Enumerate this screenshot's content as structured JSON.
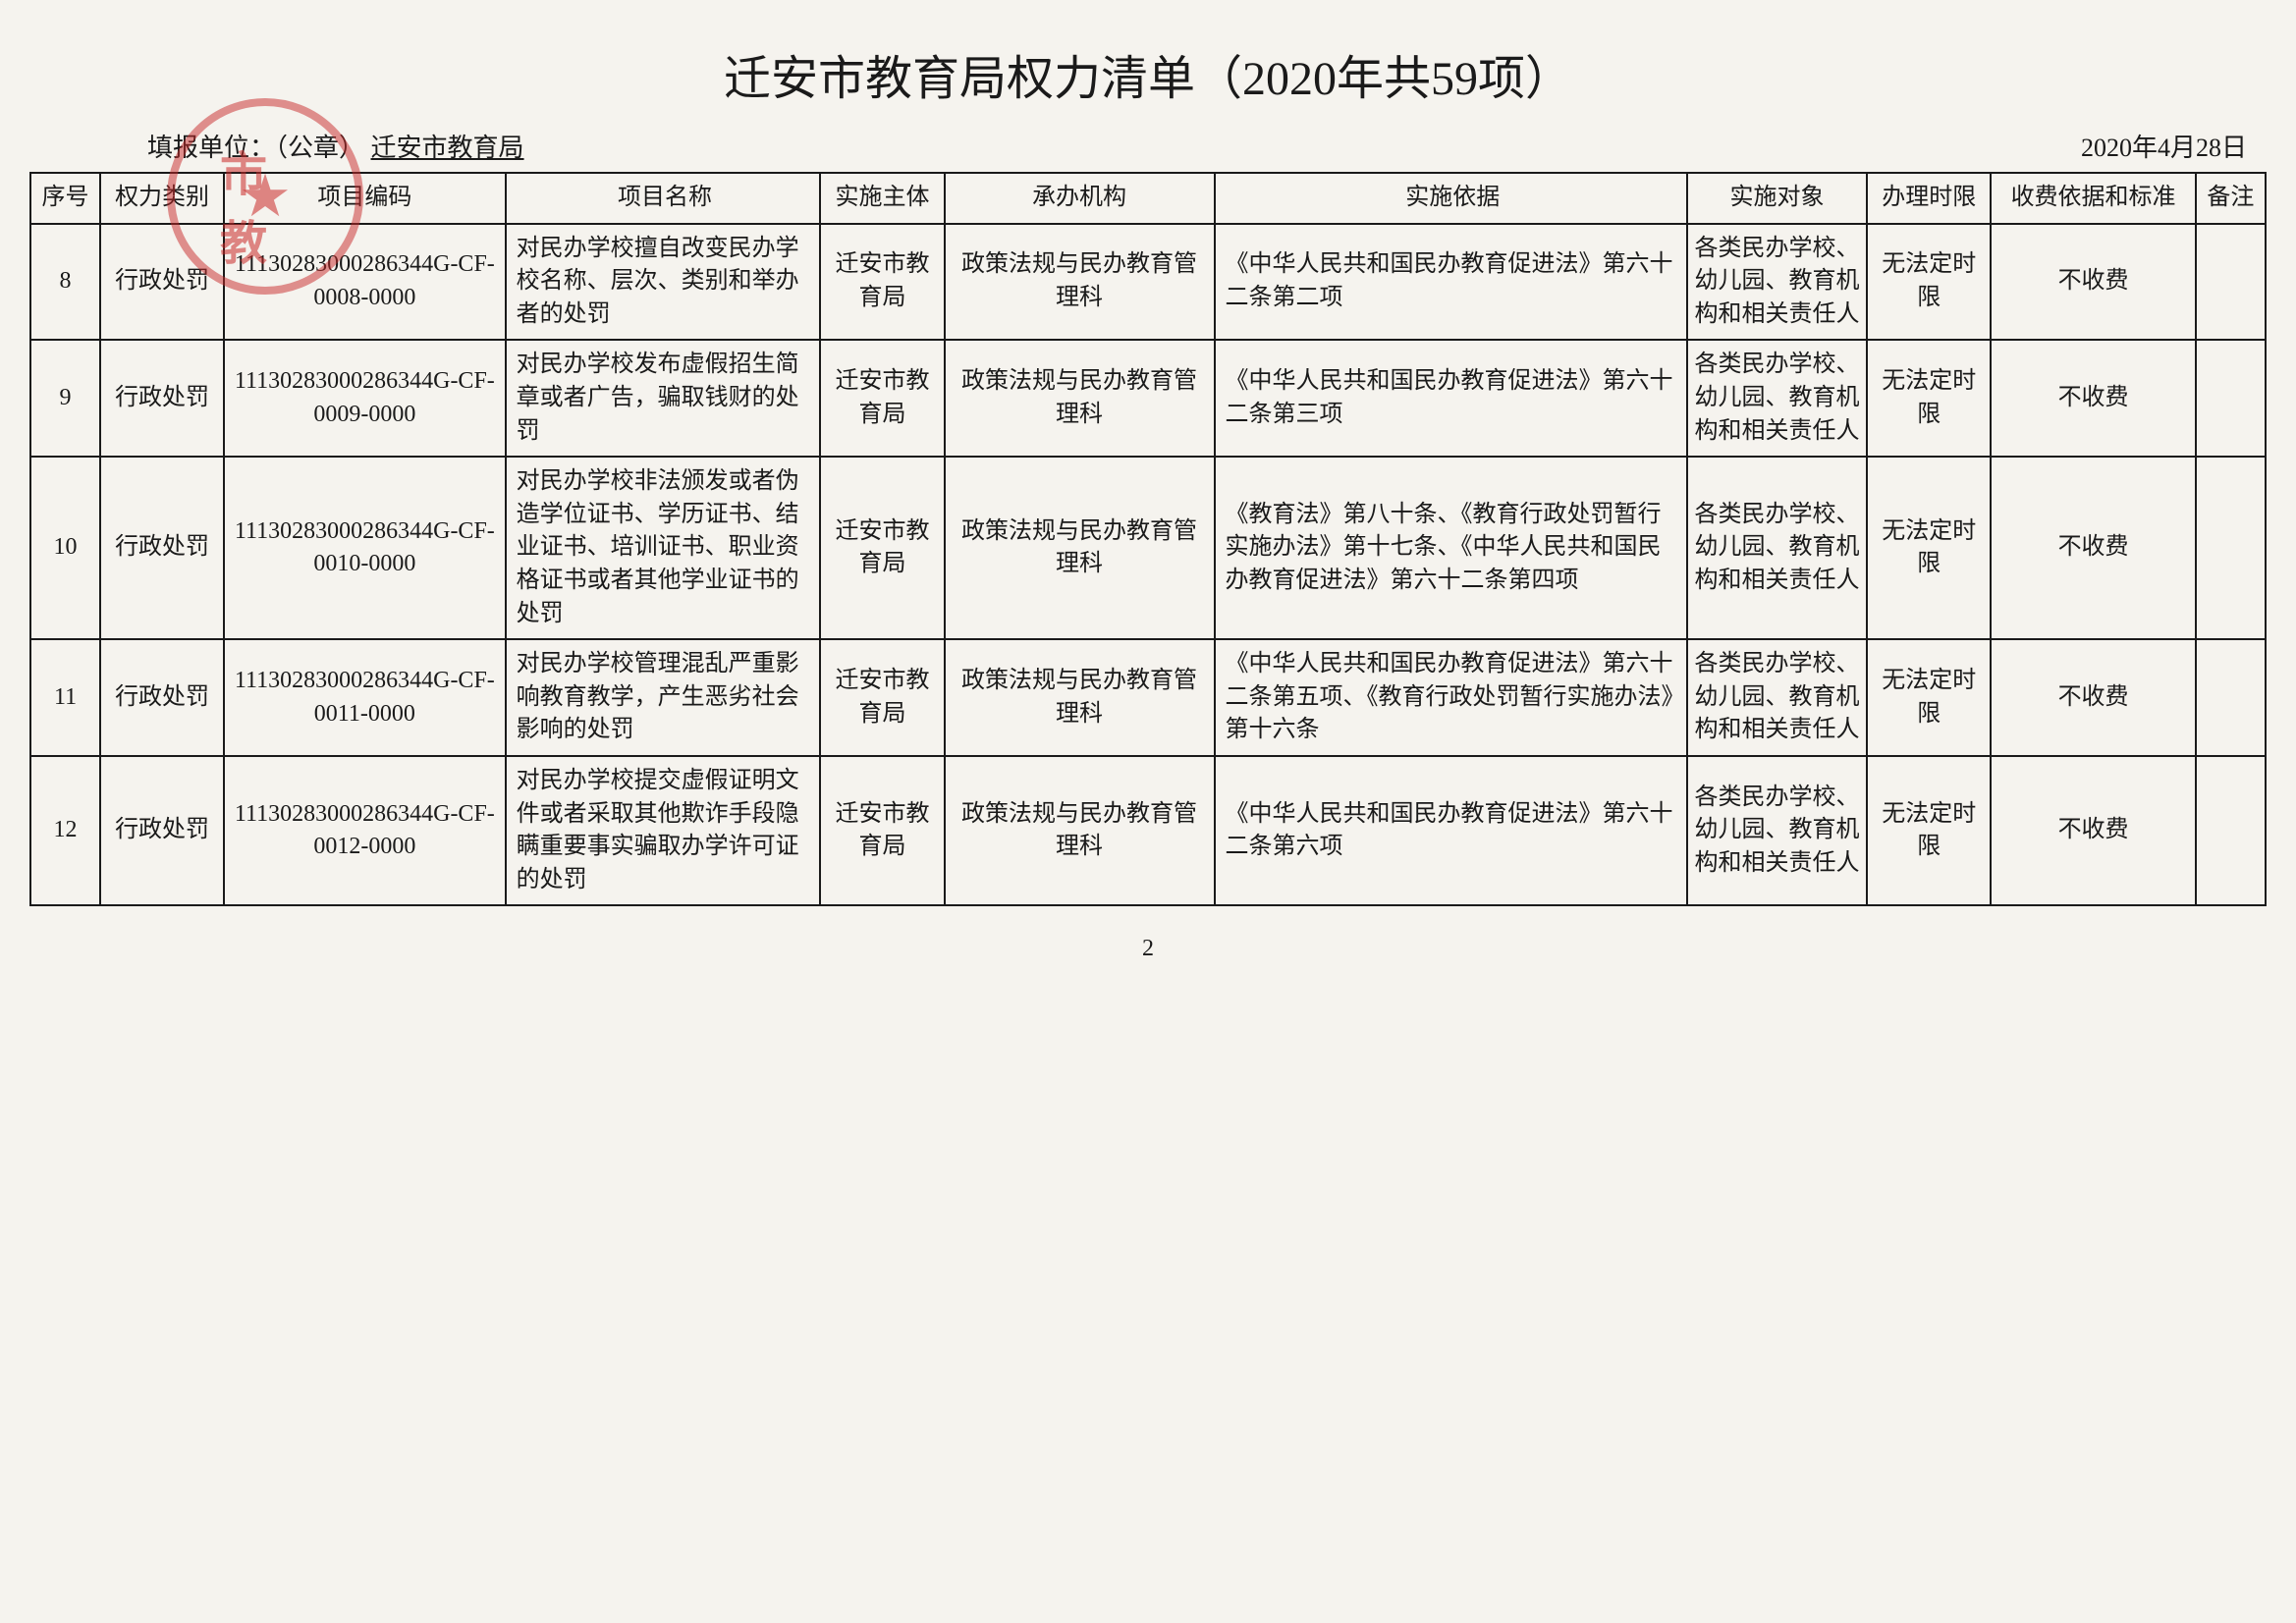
{
  "title": "迁安市教育局权力清单（2020年共59项）",
  "header": {
    "unit_label": "填报单位：（公章）",
    "unit_name": "迁安市教育局",
    "date": "2020年4月28日"
  },
  "columns": {
    "seq": "序号",
    "type": "权力类别",
    "code": "项目编码",
    "name": "项目名称",
    "body": "实施主体",
    "agency": "承办机构",
    "basis": "实施依据",
    "target": "实施对象",
    "time": "办理时限",
    "fee": "收费依据和标准",
    "note": "备注"
  },
  "rows": [
    {
      "seq": "8",
      "type": "行政处罚",
      "code": "11130283000286344G-CF-0008-0000",
      "name": "对民办学校擅自改变民办学校名称、层次、类别和举办者的处罚",
      "body": "迁安市教育局",
      "agency": "政策法规与民办教育管理科",
      "basis": "《中华人民共和国民办教育促进法》第六十二条第二项",
      "target": "各类民办学校、幼儿园、教育机构和相关责任人",
      "time": "无法定时限",
      "fee": "不收费",
      "note": ""
    },
    {
      "seq": "9",
      "type": "行政处罚",
      "code": "11130283000286344G-CF-0009-0000",
      "name": "对民办学校发布虚假招生简章或者广告，骗取钱财的处罚",
      "body": "迁安市教育局",
      "agency": "政策法规与民办教育管理科",
      "basis": "《中华人民共和国民办教育促进法》第六十二条第三项",
      "target": "各类民办学校、幼儿园、教育机构和相关责任人",
      "time": "无法定时限",
      "fee": "不收费",
      "note": ""
    },
    {
      "seq": "10",
      "type": "行政处罚",
      "code": "11130283000286344G-CF-0010-0000",
      "name": "对民办学校非法颁发或者伪造学位证书、学历证书、结业证书、培训证书、职业资格证书或者其他学业证书的处罚",
      "body": "迁安市教育局",
      "agency": "政策法规与民办教育管理科",
      "basis": "《教育法》第八十条、《教育行政处罚暂行实施办法》第十七条、《中华人民共和国民办教育促进法》第六十二条第四项",
      "target": "各类民办学校、幼儿园、教育机构和相关责任人",
      "time": "无法定时限",
      "fee": "不收费",
      "note": ""
    },
    {
      "seq": "11",
      "type": "行政处罚",
      "code": "11130283000286344G-CF-0011-0000",
      "name": "对民办学校管理混乱严重影响教育教学，产生恶劣社会影响的处罚",
      "body": "迁安市教育局",
      "agency": "政策法规与民办教育管理科",
      "basis": "《中华人民共和国民办教育促进法》第六十二条第五项、《教育行政处罚暂行实施办法》第十六条",
      "target": "各类民办学校、幼儿园、教育机构和相关责任人",
      "time": "无法定时限",
      "fee": "不收费",
      "note": ""
    },
    {
      "seq": "12",
      "type": "行政处罚",
      "code": "11130283000286344G-CF-0012-0000",
      "name": "对民办学校提交虚假证明文件或者采取其他欺诈手段隐瞒重要事实骗取办学许可证的处罚",
      "body": "迁安市教育局",
      "agency": "政策法规与民办教育管理科",
      "basis": "《中华人民共和国民办教育促进法》第六十二条第六项",
      "target": "各类民办学校、幼儿园、教育机构和相关责任人",
      "time": "无法定时限",
      "fee": "不收费",
      "note": ""
    }
  ],
  "page_number": "2",
  "styling": {
    "background_color": "#f5f3ee",
    "border_color": "#1a1a1a",
    "text_color": "#1a1a1a",
    "stamp_color": "rgba(200, 40, 40, 0.5)",
    "title_fontsize": 48,
    "cell_fontsize": 24,
    "header_fontsize": 26
  }
}
